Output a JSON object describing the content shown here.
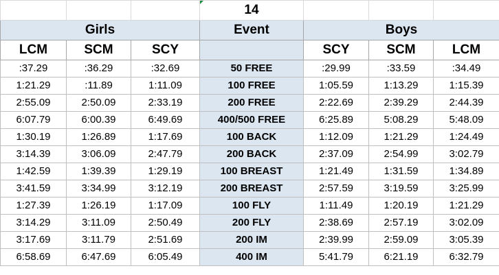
{
  "title": "14",
  "groups": {
    "girls": "Girls",
    "event": "Event",
    "boys": "Boys"
  },
  "columns": {
    "lcm_girls": "LCM",
    "scm_girls": "SCM",
    "scy_girls": "SCY",
    "scy_boys": "SCY",
    "scm_boys": "SCM",
    "lcm_boys": "LCM"
  },
  "rows": [
    {
      "g_lcm": ":37.29",
      "g_scm": ":36.29",
      "g_scy": ":32.69",
      "event": "50 FREE",
      "b_scy": ":29.99",
      "b_scm": ":33.59",
      "b_lcm": ":34.49"
    },
    {
      "g_lcm": "1:21.29",
      "g_scm": ":11.89",
      "g_scy": "1:11.09",
      "event": "100 FREE",
      "b_scy": "1:05.59",
      "b_scm": "1:13.29",
      "b_lcm": "1:15.39"
    },
    {
      "g_lcm": "2:55.09",
      "g_scm": "2:50.09",
      "g_scy": "2:33.19",
      "event": "200 FREE",
      "b_scy": "2:22.69",
      "b_scm": "2:39.29",
      "b_lcm": "2:44.39"
    },
    {
      "g_lcm": "6:07.79",
      "g_scm": "6:00.39",
      "g_scy": "6:49.69",
      "event": "400/500 FREE",
      "b_scy": "6:25.89",
      "b_scm": "5:08.29",
      "b_lcm": "5:48.09"
    },
    {
      "g_lcm": "1:30.19",
      "g_scm": "1:26.89",
      "g_scy": "1:17.69",
      "event": "100 BACK",
      "b_scy": "1:12.09",
      "b_scm": "1:21.29",
      "b_lcm": "1:24.49"
    },
    {
      "g_lcm": "3:14.39",
      "g_scm": "3:06.09",
      "g_scy": "2:47.79",
      "event": "200 BACK",
      "b_scy": "2:37.09",
      "b_scm": "2:54.99",
      "b_lcm": "3:02.79"
    },
    {
      "g_lcm": "1:42.59",
      "g_scm": "1:39.39",
      "g_scy": "1:29.19",
      "event": "100 BREAST",
      "b_scy": "1:21.49",
      "b_scm": "1:31.59",
      "b_lcm": "1:34.89"
    },
    {
      "g_lcm": "3:41.59",
      "g_scm": "3:34.99",
      "g_scy": "3:12.19",
      "event": "200 BREAST",
      "b_scy": "2:57.59",
      "b_scm": "3:19.59",
      "b_lcm": "3:25.99"
    },
    {
      "g_lcm": "1:27.39",
      "g_scm": "1:26.19",
      "g_scy": "1:17.09",
      "event": "100 FLY",
      "b_scy": "1:11.49",
      "b_scm": "1:20.19",
      "b_lcm": "1:21.29"
    },
    {
      "g_lcm": "3:14.29",
      "g_scm": "3:11.09",
      "g_scy": "2:50.49",
      "event": "200 FLY",
      "b_scy": "2:38.69",
      "b_scm": "2:57.19",
      "b_lcm": "3:02.09"
    },
    {
      "g_lcm": "3:17.69",
      "g_scm": "3:11.79",
      "g_scy": "2:51.69",
      "event": "200 IM",
      "b_scy": "2:39.99",
      "b_scm": "2:59.09",
      "b_lcm": "3:05.39"
    },
    {
      "g_lcm": "6:58.69",
      "g_scm": "6:47.69",
      "g_scy": "6:05.49",
      "event": "400 IM",
      "b_scy": "5:41.79",
      "b_scm": "6:21.19",
      "b_lcm": "6:32.79"
    }
  ],
  "colors": {
    "header_fill": "#dce6f1",
    "gridline": "#bfbfbf",
    "corner_mark": "#1e8a3e"
  }
}
